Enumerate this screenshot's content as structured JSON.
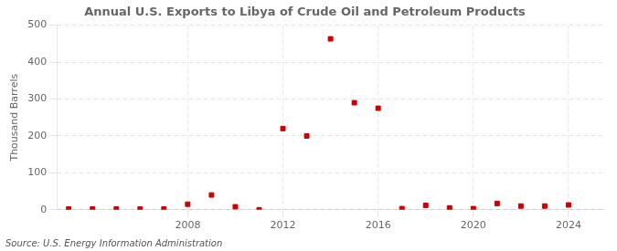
{
  "chart_data": {
    "type": "scatter",
    "title": "Annual U.S. Exports to Libya of Crude Oil and Petroleum Products",
    "ylabel": "Thousand Barrels",
    "annotations": [
      "Source: U.S. Energy Information Administration"
    ],
    "x": [
      2003,
      2004,
      2005,
      2006,
      2007,
      2008,
      2009,
      2010,
      2011,
      2012,
      2013,
      2014,
      2015,
      2016,
      2017,
      2018,
      2019,
      2020,
      2021,
      2022,
      2023,
      2024
    ],
    "values": [
      2,
      2,
      2,
      2,
      2,
      15,
      40,
      8,
      0,
      220,
      200,
      463,
      290,
      275,
      3,
      12,
      5,
      3,
      17,
      10,
      10,
      13
    ],
    "color": "#cc0000",
    "marker": "square",
    "xlim": [
      2002.5,
      2025.5
    ],
    "xticks": [
      2008,
      2012,
      2016,
      2020,
      2024
    ],
    "ylim": [
      0,
      500
    ],
    "yticks": [
      0,
      100,
      200,
      300,
      400,
      500
    ],
    "grid": true
  }
}
